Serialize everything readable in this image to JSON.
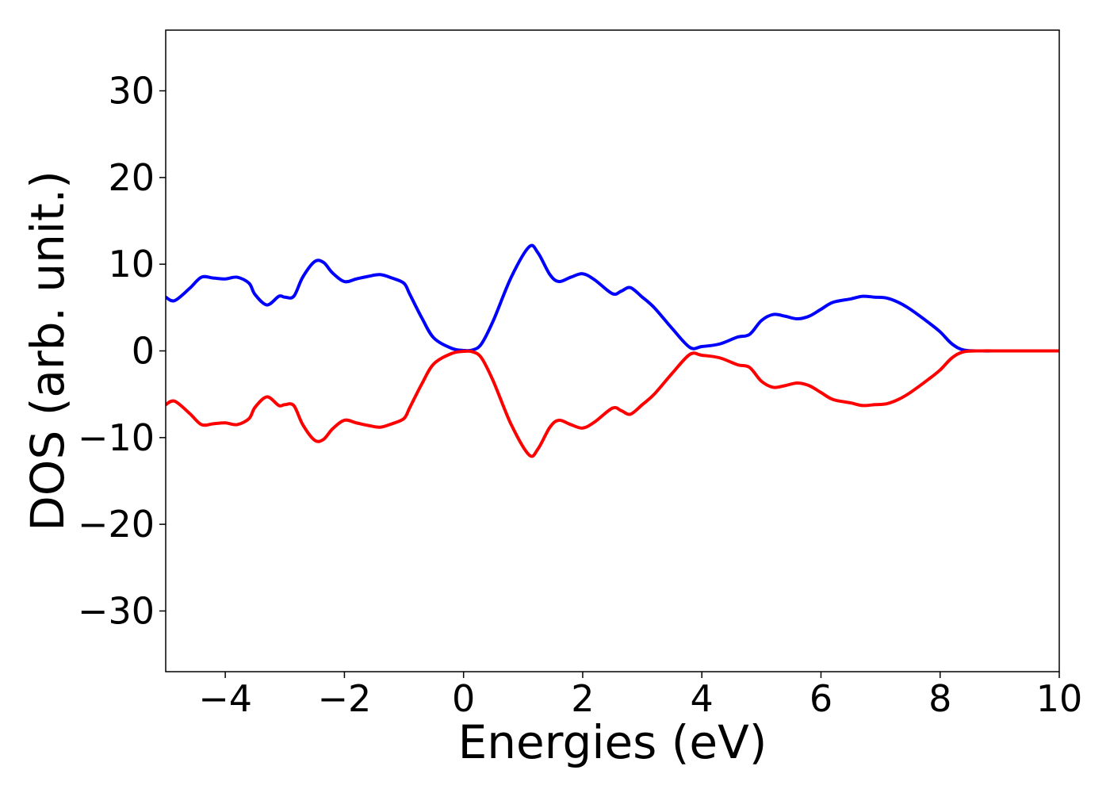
{
  "chart_data": {
    "type": "line",
    "title": "",
    "xlabel": "Energies (eV)",
    "ylabel": "DOS (arb. unit.)",
    "xlim": [
      -5,
      10
    ],
    "ylim": [
      -37,
      37
    ],
    "grid": false,
    "legend": "none",
    "xticks": [
      -4,
      -2,
      0,
      2,
      4,
      6,
      8,
      10
    ],
    "yticks": [
      -30,
      -20,
      -10,
      0,
      10,
      20,
      30
    ],
    "xtick_labels": [
      "−4",
      "−2",
      "0",
      "2",
      "4",
      "6",
      "8",
      "10"
    ],
    "ytick_labels": [
      "−30",
      "−20",
      "−10",
      "0",
      "10",
      "20",
      "30"
    ],
    "series": [
      {
        "color": "#0000ff",
        "x": [
          -5,
          -4.85,
          -4.6,
          -4.4,
          -4.2,
          -4.0,
          -3.8,
          -3.6,
          -3.5,
          -3.3,
          -3.1,
          -3.0,
          -2.85,
          -2.7,
          -2.5,
          -2.35,
          -2.2,
          -2.0,
          -1.8,
          -1.6,
          -1.4,
          -1.2,
          -1.0,
          -0.9,
          -0.7,
          -0.5,
          -0.2,
          0,
          0.15,
          0.3,
          0.5,
          0.8,
          1.1,
          1.25,
          1.45,
          1.6,
          1.8,
          2.0,
          2.2,
          2.5,
          2.65,
          2.8,
          3.0,
          3.2,
          3.5,
          3.8,
          4.0,
          4.3,
          4.6,
          4.8,
          5.0,
          5.2,
          5.4,
          5.6,
          5.8,
          6.0,
          6.2,
          6.5,
          6.7,
          6.9,
          7.1,
          7.3,
          7.5,
          7.8,
          8.0,
          8.2,
          8.4,
          8.7,
          9.0,
          9.5,
          10
        ],
        "values": [
          6.2,
          5.8,
          7.2,
          8.5,
          8.4,
          8.3,
          8.5,
          7.8,
          6.5,
          5.3,
          6.3,
          6.2,
          6.3,
          8.5,
          10.3,
          10.2,
          9.0,
          8.0,
          8.3,
          8.6,
          8.8,
          8.4,
          7.8,
          6.5,
          3.8,
          1.5,
          0.3,
          0.05,
          0.1,
          0.8,
          3.5,
          8.5,
          12.0,
          11.3,
          8.8,
          8.0,
          8.5,
          8.9,
          8.2,
          6.6,
          6.9,
          7.3,
          6.2,
          5.0,
          2.6,
          0.4,
          0.5,
          0.8,
          1.6,
          1.9,
          3.5,
          4.2,
          4.0,
          3.7,
          4.0,
          4.8,
          5.6,
          6.0,
          6.3,
          6.2,
          6.1,
          5.6,
          4.8,
          3.3,
          2.2,
          0.8,
          0.1,
          0.0,
          0.0,
          0.0,
          0.0
        ]
      },
      {
        "color": "#ff0000",
        "x": [
          -5,
          -4.85,
          -4.6,
          -4.4,
          -4.2,
          -4.0,
          -3.8,
          -3.6,
          -3.5,
          -3.3,
          -3.1,
          -3.0,
          -2.85,
          -2.7,
          -2.5,
          -2.35,
          -2.2,
          -2.0,
          -1.8,
          -1.6,
          -1.4,
          -1.2,
          -1.0,
          -0.9,
          -0.7,
          -0.5,
          -0.2,
          0,
          0.15,
          0.3,
          0.5,
          0.8,
          1.1,
          1.25,
          1.45,
          1.6,
          1.8,
          2.0,
          2.2,
          2.5,
          2.65,
          2.8,
          3.0,
          3.2,
          3.5,
          3.8,
          4.0,
          4.3,
          4.6,
          4.8,
          5.0,
          5.2,
          5.4,
          5.6,
          5.8,
          6.0,
          6.2,
          6.5,
          6.7,
          6.9,
          7.1,
          7.3,
          7.5,
          7.8,
          8.0,
          8.2,
          8.4,
          8.7,
          9.0,
          9.5,
          10
        ],
        "values": [
          -6.2,
          -5.8,
          -7.2,
          -8.5,
          -8.4,
          -8.3,
          -8.5,
          -7.8,
          -6.5,
          -5.3,
          -6.3,
          -6.2,
          -6.3,
          -8.5,
          -10.3,
          -10.2,
          -9.0,
          -8.0,
          -8.3,
          -8.6,
          -8.8,
          -8.4,
          -7.8,
          -6.5,
          -3.8,
          -1.5,
          -0.3,
          -0.05,
          -0.1,
          -0.8,
          -3.5,
          -8.5,
          -12.0,
          -11.3,
          -8.8,
          -8.0,
          -8.5,
          -8.9,
          -8.2,
          -6.6,
          -6.9,
          -7.3,
          -6.2,
          -5.0,
          -2.6,
          -0.4,
          -0.5,
          -0.8,
          -1.6,
          -1.9,
          -3.5,
          -4.2,
          -4.0,
          -3.7,
          -4.0,
          -4.8,
          -5.6,
          -6.0,
          -6.3,
          -6.2,
          -6.1,
          -5.6,
          -4.8,
          -3.3,
          -2.2,
          -0.8,
          -0.1,
          0.0,
          0.0,
          0.0,
          0.0
        ]
      }
    ]
  }
}
